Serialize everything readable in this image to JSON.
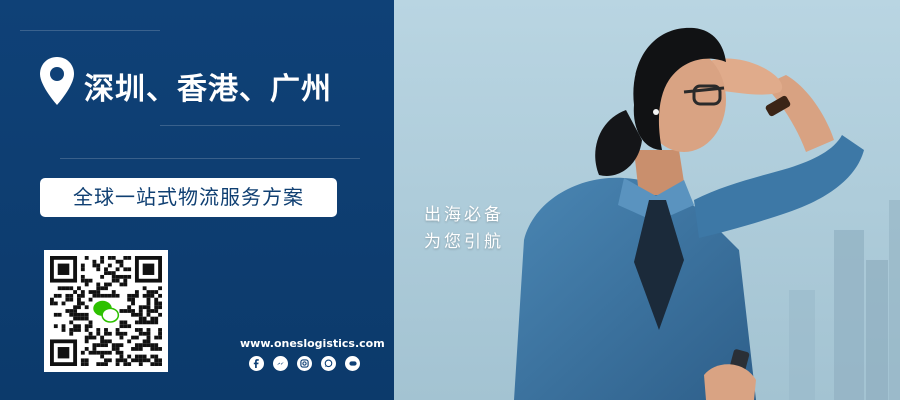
{
  "banner": {
    "cities": "深圳、香港、广州",
    "service": "全球一站式物流服务方案",
    "slogan_line1": "出海必备",
    "slogan_line2": "为您引航",
    "website": "www.oneslogistics.com"
  },
  "icons": {
    "location": "map-pin-icon",
    "qr": "wechat-qr-code",
    "social": [
      "facebook-icon",
      "messenger-icon",
      "instagram-icon",
      "whatsapp-icon",
      "line-icon"
    ]
  },
  "colors": {
    "panel_navy": "#0f4177",
    "pill_text": "#0f3f72",
    "wechat_green": "#2dc100",
    "white": "#ffffff"
  }
}
